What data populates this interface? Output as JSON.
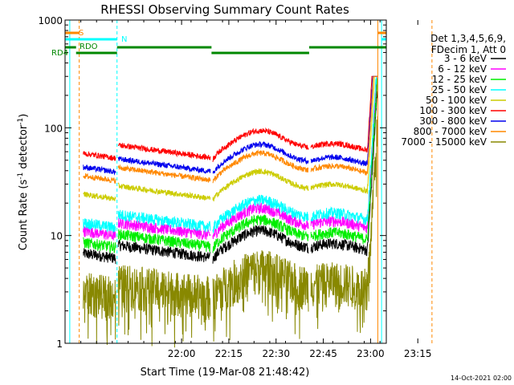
{
  "chart_data": {
    "type": "line",
    "title": "RHESSI Observing Summary Count Rates",
    "xlabel": "Start Time (19-Mar-08 21:48:42)",
    "ylabel_main": "Count Rate (s",
    "ylabel_sup1": "-1",
    "ylabel_mid": " detector",
    "ylabel_sup2": "-1",
    "ylabel_end": ")",
    "yscale": "log",
    "ylim": [
      1,
      1000
    ],
    "xlim_minutes": [
      -37,
      65
    ],
    "x_ticks": [
      {
        "label": "22:00",
        "t": 0
      },
      {
        "label": "22:15",
        "t": 15
      },
      {
        "label": "22:30",
        "t": 30
      },
      {
        "label": "22:45",
        "t": 45
      },
      {
        "label": "23:00",
        "t": 60
      },
      {
        "label": "23:15",
        "t": 75
      }
    ],
    "y_ticks": [
      {
        "label": "1",
        "v": 1
      },
      {
        "label": "10",
        "v": 10
      },
      {
        "label": "100",
        "v": 100
      },
      {
        "label": "1000",
        "v": 1000
      }
    ],
    "legend": {
      "header": [
        "Det 1,3,4,5,6,9,",
        "FDecim 1, Att 0"
      ],
      "placement": "right"
    },
    "series": [
      {
        "name": "3 - 6 keV",
        "color": "#000000",
        "base": 6.5
      },
      {
        "name": "6 - 12 keV",
        "color": "#ff00ff",
        "base": 10.5
      },
      {
        "name": "12 - 25 keV",
        "color": "#00ee00",
        "base": 8.2
      },
      {
        "name": "25 - 50 keV",
        "color": "#00ffff",
        "base": 12.5
      },
      {
        "name": "50 - 100 keV",
        "color": "#cccc00",
        "base": 23
      },
      {
        "name": "100 - 300 keV",
        "color": "#ff0000",
        "base": 55
      },
      {
        "name": "300 - 800 keV",
        "color": "#0000ee",
        "base": 41
      },
      {
        "name": "800 - 7000 keV",
        "color": "#ff8800",
        "base": 34
      },
      {
        "name": "7000 - 15000 keV",
        "color": "#888800",
        "base": 3.0
      }
    ],
    "flags": [
      {
        "name": "S",
        "color": "#ff8800"
      },
      {
        "name": "N",
        "color": "#00ffff"
      },
      {
        "name": "RDO",
        "color": "#008800"
      },
      {
        "name": "RD4",
        "color": "#008800"
      }
    ],
    "timestamp": "14-Oct-2021 02:00"
  }
}
